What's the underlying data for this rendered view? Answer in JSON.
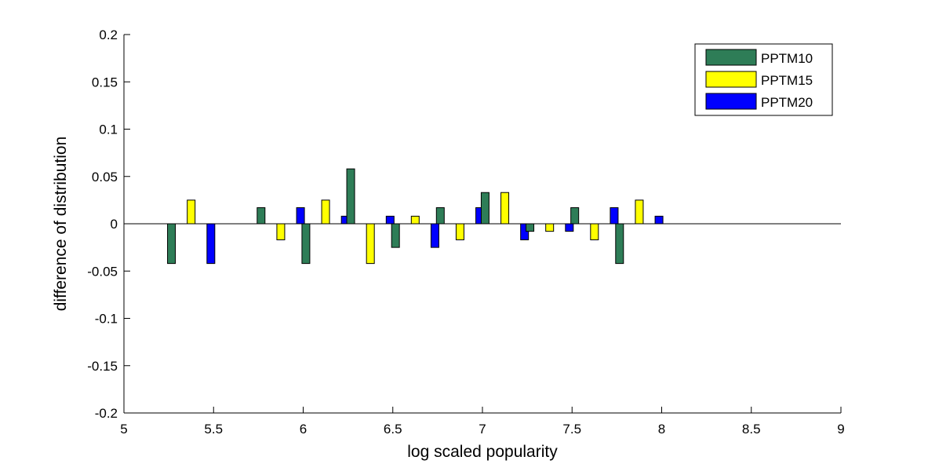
{
  "chart_data": {
    "type": "bar",
    "title": "",
    "xlabel": "log scaled popularity",
    "ylabel": "difference of distribution",
    "xlim": [
      5,
      9
    ],
    "ylim": [
      -0.2,
      0.2
    ],
    "xticks": [
      "5",
      "5.5",
      "6",
      "6.5",
      "7",
      "7.5",
      "8",
      "8.5",
      "9"
    ],
    "yticks": [
      "-0.2",
      "-0.15",
      "-0.1",
      "-0.05",
      "0",
      "0.05",
      "0.1",
      "0.15",
      "0.2"
    ],
    "x": [
      5.375,
      5.875,
      6.125,
      6.375,
      6.625,
      6.875,
      7.125,
      7.375,
      7.625,
      7.875
    ],
    "series": [
      {
        "name": "PPTM10",
        "color": "#2e7d57",
        "values": [
          -0.042,
          0.017,
          -0.042,
          0.058,
          -0.025,
          0.017,
          0.033,
          -0.008,
          0.017,
          -0.042
        ]
      },
      {
        "name": "PPTM15",
        "color": "#ffff00",
        "values": [
          0.025,
          -0.017,
          0.025,
          -0.042,
          0.008,
          -0.017,
          0.033,
          -0.008,
          -0.017,
          0.025
        ]
      },
      {
        "name": "PPTM20",
        "color": "#0000ff",
        "values": [
          -0.042,
          0.017,
          0.008,
          0.008,
          -0.025,
          0.017,
          -0.017,
          -0.008,
          0.017,
          0.008
        ]
      }
    ],
    "legend_position": "top-right",
    "grid": false
  }
}
